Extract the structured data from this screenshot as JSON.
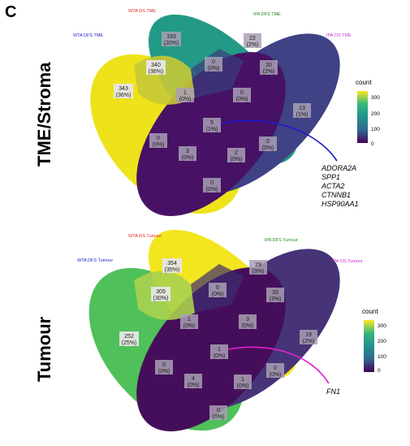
{
  "panel_label": "C",
  "colors": {
    "scale": [
      "#440154",
      "#31688e",
      "#21918c",
      "#35b779",
      "#fde725"
    ],
    "pointer_top": "#1a1acd",
    "pointer_bottom": "#e020d0",
    "set_wta_dfs": "#1a1acd",
    "set_wta_os": "#e0261c",
    "set_ipa_dfs": "#1e8c1e",
    "set_ipa_os": "#c030d0"
  },
  "top": {
    "title": "TME/Stroma",
    "sets": {
      "wta_dfs": "WTA DFS TME",
      "wta_os": "WTA OS TME",
      "ipa_dfs": "IPA DFS TME",
      "ipa_os": "IPA OS TME"
    },
    "cells": {
      "wta_os_only": [
        "193",
        "(20%)"
      ],
      "ipa_dfs_only": [
        "22",
        "(2%)"
      ],
      "ipa_dfs_os": [
        "20",
        "(2%)"
      ],
      "wta_dfs_os": [
        "340",
        "(36%)"
      ],
      "wta_os_ipa_dfs": [
        "0",
        "(0%)"
      ],
      "wta_dfs_only": [
        "343",
        "(36%)"
      ],
      "center_left": [
        "1",
        "(0%)"
      ],
      "center_right": [
        "0",
        "(0%)"
      ],
      "ipa_os_only": [
        "13",
        "(1%)"
      ],
      "all_four": [
        "5",
        "(1%)"
      ],
      "lower_left": [
        "0",
        "(0%)"
      ],
      "lower_right": [
        "0",
        "(0%)"
      ],
      "mid_left": [
        "3",
        "(0%)"
      ],
      "mid_right": [
        "2",
        "(0%)"
      ],
      "bottom": [
        "0",
        "(0%)"
      ]
    },
    "genes": [
      "ADORA2A",
      "SPP1",
      "ACTA2",
      "CTNNB1",
      "HSP90AA1"
    ],
    "legend": {
      "title": "count",
      "ticks": [
        "300",
        "200",
        "100",
        "0"
      ]
    }
  },
  "bottom": {
    "title": "Tumour",
    "sets": {
      "wta_dfs": "WTA DFS Tumour",
      "wta_os": "WTA OS Tumour",
      "ipa_dfs": "IPA DFS Tumour",
      "ipa_os": "IPA OS Tumour"
    },
    "cells": {
      "wta_os_only": [
        "354",
        "(35%)"
      ],
      "ipa_dfs_only": [
        "29",
        "(3%)"
      ],
      "ipa_dfs_os": [
        "33",
        "(3%)"
      ],
      "wta_dfs_os": [
        "305",
        "(30%)"
      ],
      "wta_os_ipa_dfs": [
        "0",
        "(0%)"
      ],
      "wta_dfs_only": [
        "252",
        "(25%)"
      ],
      "center_left": [
        "1",
        "(0%)"
      ],
      "center_right": [
        "3",
        "(0%)"
      ],
      "ipa_os_only": [
        "19",
        "(2%)"
      ],
      "all_four": [
        "1",
        "(0%)"
      ],
      "lower_left": [
        "0",
        "(0%)"
      ],
      "lower_right": [
        "0",
        "(0%)"
      ],
      "mid_left": [
        "4",
        "(0%)"
      ],
      "mid_right": [
        "1",
        "(0%)"
      ],
      "bottom": [
        "0",
        "(0%)"
      ]
    },
    "genes": [
      "FN1"
    ],
    "legend": {
      "title": "count",
      "ticks": [
        "300",
        "200",
        "100",
        "0"
      ]
    }
  }
}
